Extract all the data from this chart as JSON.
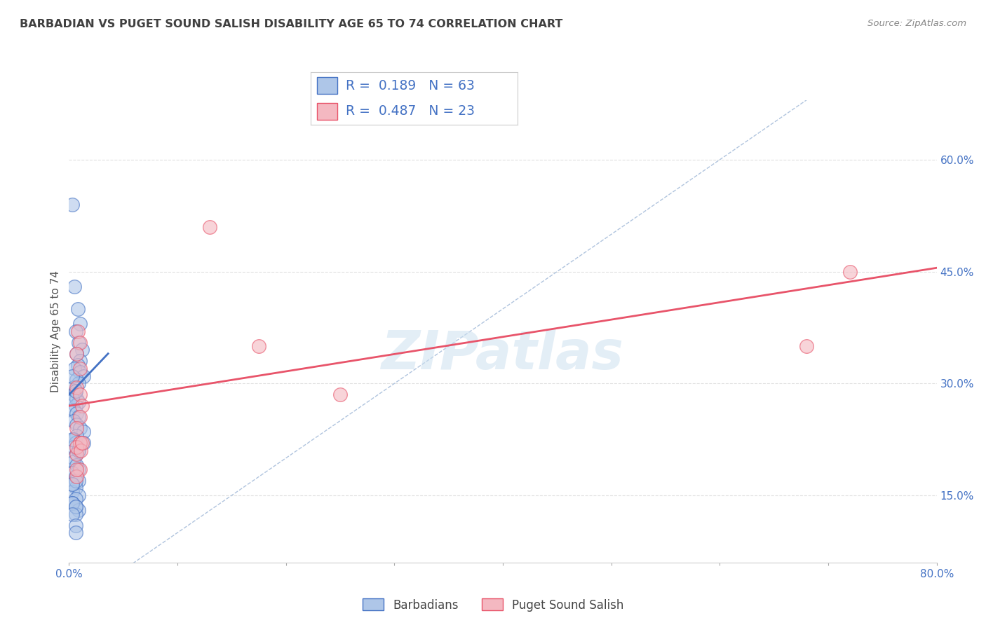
{
  "title": "BARBADIAN VS PUGET SOUND SALISH DISABILITY AGE 65 TO 74 CORRELATION CHART",
  "source": "Source: ZipAtlas.com",
  "ylabel": "Disability Age 65 to 74",
  "xlim": [
    0.0,
    0.8
  ],
  "ylim": [
    0.06,
    0.68
  ],
  "xticks": [
    0.0,
    0.1,
    0.2,
    0.3,
    0.4,
    0.5,
    0.6,
    0.7,
    0.8
  ],
  "xticklabels": [
    "0.0%",
    "",
    "",
    "",
    "",
    "",
    "",
    "",
    "80.0%"
  ],
  "yticks_right": [
    0.15,
    0.3,
    0.45,
    0.6
  ],
  "ytick_right_labels": [
    "15.0%",
    "30.0%",
    "45.0%",
    "60.0%"
  ],
  "blue_dots_x": [
    0.005,
    0.008,
    0.01,
    0.006,
    0.009,
    0.012,
    0.007,
    0.01,
    0.008,
    0.005,
    0.01,
    0.013,
    0.007,
    0.009,
    0.004,
    0.006,
    0.004,
    0.007,
    0.009,
    0.006,
    0.004,
    0.007,
    0.009,
    0.004,
    0.007,
    0.01,
    0.013,
    0.007,
    0.004,
    0.006,
    0.004,
    0.009,
    0.007,
    0.004,
    0.004,
    0.007,
    0.009,
    0.003,
    0.006,
    0.009,
    0.003,
    0.006,
    0.003,
    0.009,
    0.006,
    0.003,
    0.006,
    0.013,
    0.009,
    0.003,
    0.006,
    0.003,
    0.009,
    0.006,
    0.003,
    0.003,
    0.006,
    0.003,
    0.006,
    0.006,
    0.003,
    0.006,
    0.003
  ],
  "blue_dots_y": [
    0.43,
    0.4,
    0.38,
    0.37,
    0.355,
    0.345,
    0.34,
    0.33,
    0.325,
    0.32,
    0.315,
    0.31,
    0.305,
    0.3,
    0.295,
    0.29,
    0.285,
    0.28,
    0.275,
    0.27,
    0.265,
    0.26,
    0.255,
    0.25,
    0.245,
    0.24,
    0.235,
    0.23,
    0.225,
    0.22,
    0.215,
    0.21,
    0.205,
    0.2,
    0.195,
    0.19,
    0.185,
    0.18,
    0.175,
    0.17,
    0.165,
    0.16,
    0.155,
    0.15,
    0.145,
    0.14,
    0.135,
    0.22,
    0.21,
    0.225,
    0.17,
    0.165,
    0.13,
    0.125,
    0.54,
    0.14,
    0.135,
    0.125,
    0.11,
    0.1,
    0.28,
    0.29,
    0.31
  ],
  "pink_dots_x": [
    0.008,
    0.01,
    0.007,
    0.01,
    0.007,
    0.01,
    0.012,
    0.01,
    0.007,
    0.13,
    0.01,
    0.007,
    0.01,
    0.175,
    0.007,
    0.01,
    0.007,
    0.011,
    0.25,
    0.007,
    0.68,
    0.72,
    0.012
  ],
  "pink_dots_y": [
    0.37,
    0.355,
    0.34,
    0.32,
    0.295,
    0.285,
    0.27,
    0.255,
    0.24,
    0.51,
    0.22,
    0.205,
    0.185,
    0.35,
    0.175,
    0.22,
    0.215,
    0.21,
    0.285,
    0.185,
    0.35,
    0.45,
    0.22
  ],
  "blue_line_x": [
    0.0,
    0.036
  ],
  "blue_line_y_start": 0.285,
  "blue_line_y_end": 0.34,
  "pink_line_x": [
    0.0,
    0.8
  ],
  "pink_line_y_start": 0.27,
  "pink_line_y_end": 0.455,
  "blue_line_color": "#4472c4",
  "pink_line_color": "#e8546a",
  "diagonal_color": "#b0c4de",
  "watermark_text": "ZIPatlas",
  "background_color": "#ffffff",
  "grid_color": "#e0e0e0",
  "title_color": "#404040",
  "axis_color": "#4472c4",
  "legend_value_color": "#4472c4",
  "dot_blue_face": "#aec6e8",
  "dot_pink_face": "#f4b8c1"
}
